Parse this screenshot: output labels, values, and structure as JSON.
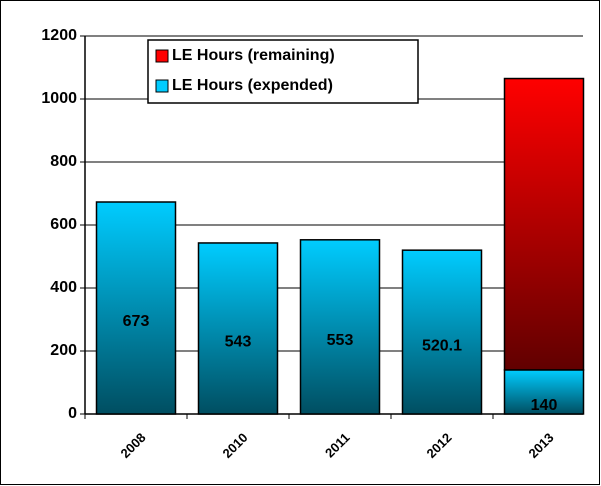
{
  "chart_data": {
    "type": "stacked_bar",
    "categories": [
      "2008",
      "2010",
      "2011",
      "2012",
      "2013"
    ],
    "series": [
      {
        "name": "LE Hours (expended)",
        "color": "#00ccff",
        "values": [
          673,
          543,
          553,
          520.1,
          140
        ]
      },
      {
        "name": "LE Hours (remaining)",
        "color": "#ff0000",
        "values": [
          null,
          null,
          null,
          null,
          925
        ]
      }
    ],
    "ylim": [
      0,
      1200
    ],
    "yticks": [
      0,
      200,
      400,
      600,
      800,
      1000,
      1200
    ],
    "grid": true,
    "legend": "top"
  }
}
